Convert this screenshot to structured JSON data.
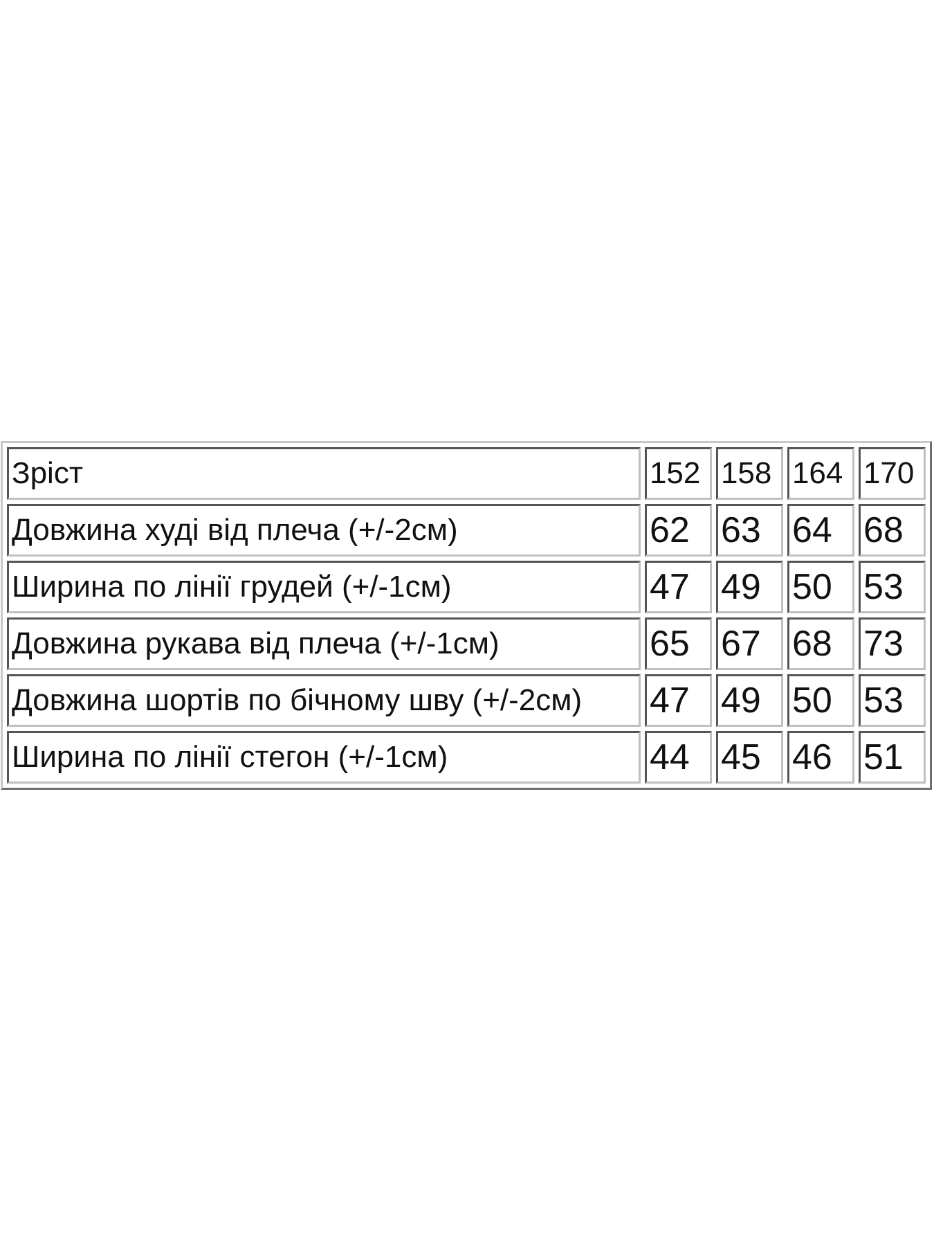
{
  "table": {
    "header": {
      "label": "Зріст",
      "sizes": [
        "152",
        "158",
        "164",
        "170"
      ]
    },
    "rows": [
      {
        "label": "Довжина худі від плеча (+/-2см)",
        "values": [
          "62",
          "63",
          "64",
          "68"
        ]
      },
      {
        "label": "Ширина по лінії грудей (+/-1см)",
        "values": [
          "47",
          "49",
          "50",
          "53"
        ]
      },
      {
        "label": "Довжина рукава від плеча (+/-1см)",
        "values": [
          "65",
          "67",
          "68",
          "73"
        ]
      },
      {
        "label": "Довжина шортів по бічному шву (+/-2см)",
        "values": [
          "47",
          "49",
          "50",
          "53"
        ]
      },
      {
        "label": "Ширина по лінії стегон (+/-1см)",
        "values": [
          "44",
          "45",
          "46",
          "51"
        ]
      }
    ]
  }
}
